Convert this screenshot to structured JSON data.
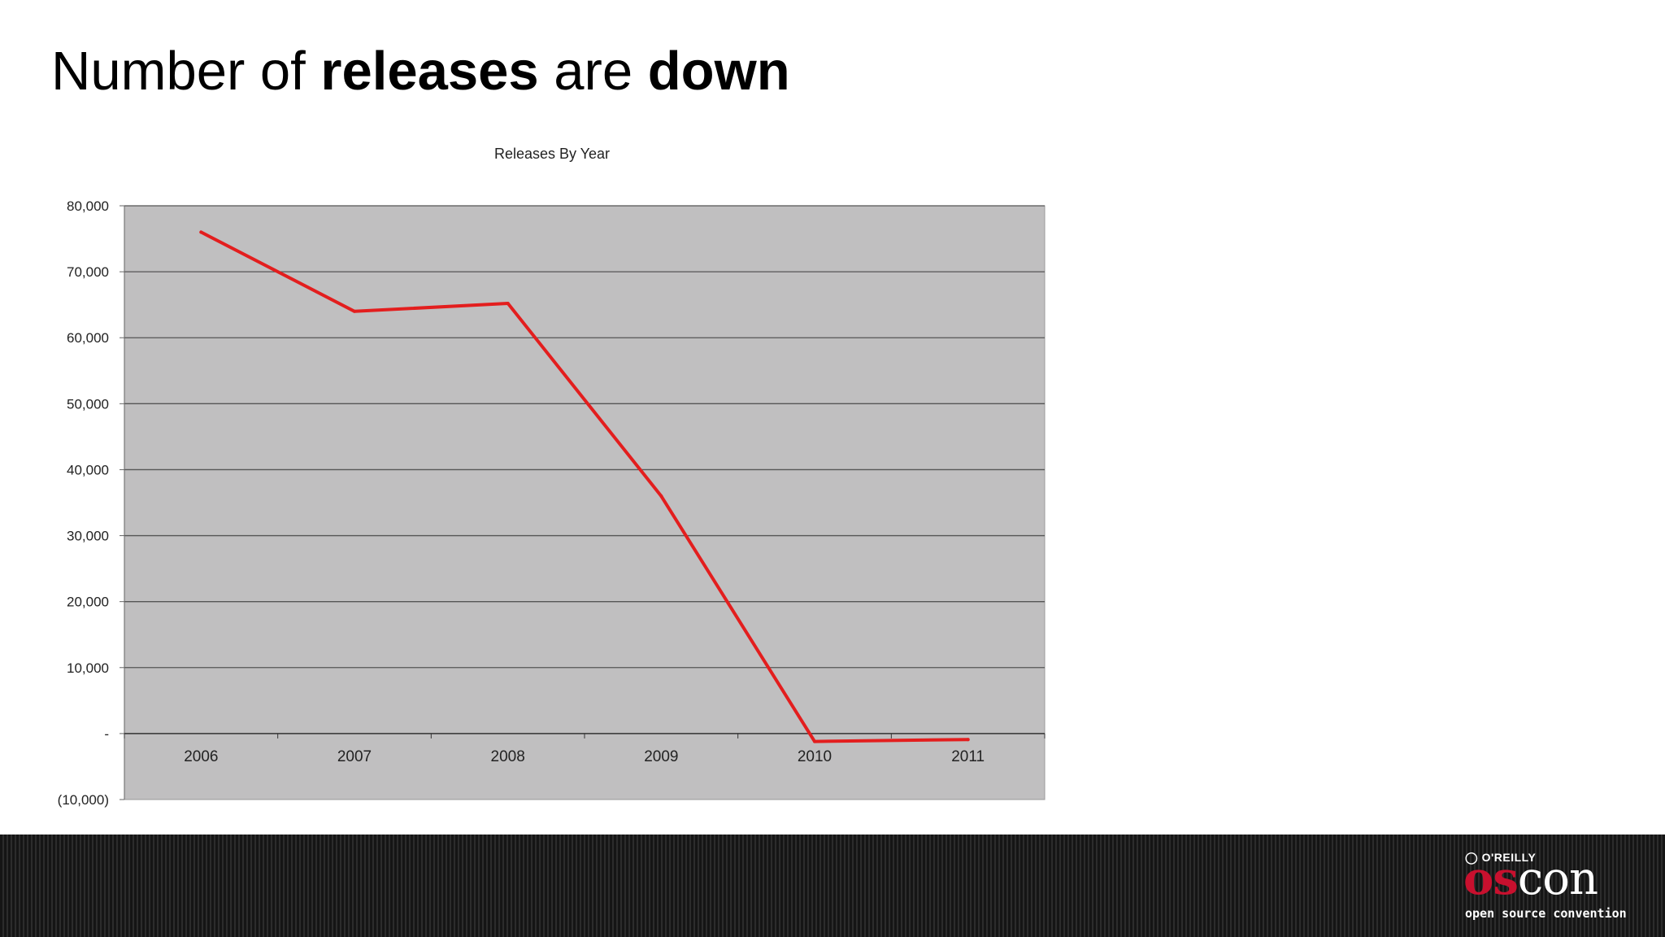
{
  "slide": {
    "title_parts": [
      "Number of ",
      "releases",
      " are ",
      "down"
    ]
  },
  "footer": {
    "logo": {
      "publisher": "O'REILLY",
      "brand_primary": "os",
      "brand_secondary": "con",
      "tagline": "open source convention"
    },
    "colors": {
      "background": "#1e1e1e",
      "brand_red": "#c8102e"
    }
  },
  "chart_data": {
    "type": "line",
    "title": "Releases By Year",
    "xlabel": "",
    "ylabel": "",
    "categories": [
      "2006",
      "2007",
      "2008",
      "2009",
      "2010",
      "2011"
    ],
    "series": [
      {
        "values": [
          76000,
          64000,
          65200,
          36000,
          -1200,
          -900
        ],
        "color": "#e31e1e"
      }
    ],
    "ylim": [
      -10000,
      80000
    ],
    "yticks": [
      80000,
      70000,
      60000,
      50000,
      40000,
      30000,
      20000,
      10000,
      0,
      -10000
    ],
    "ytick_labels": [
      "80,000",
      "70,000",
      "60,000",
      "50,000",
      "40,000",
      "30,000",
      "20,000",
      "10,000",
      "-",
      "(10,000)"
    ],
    "plot_background": "#c0bfc0",
    "grid": true,
    "legend": "none"
  }
}
